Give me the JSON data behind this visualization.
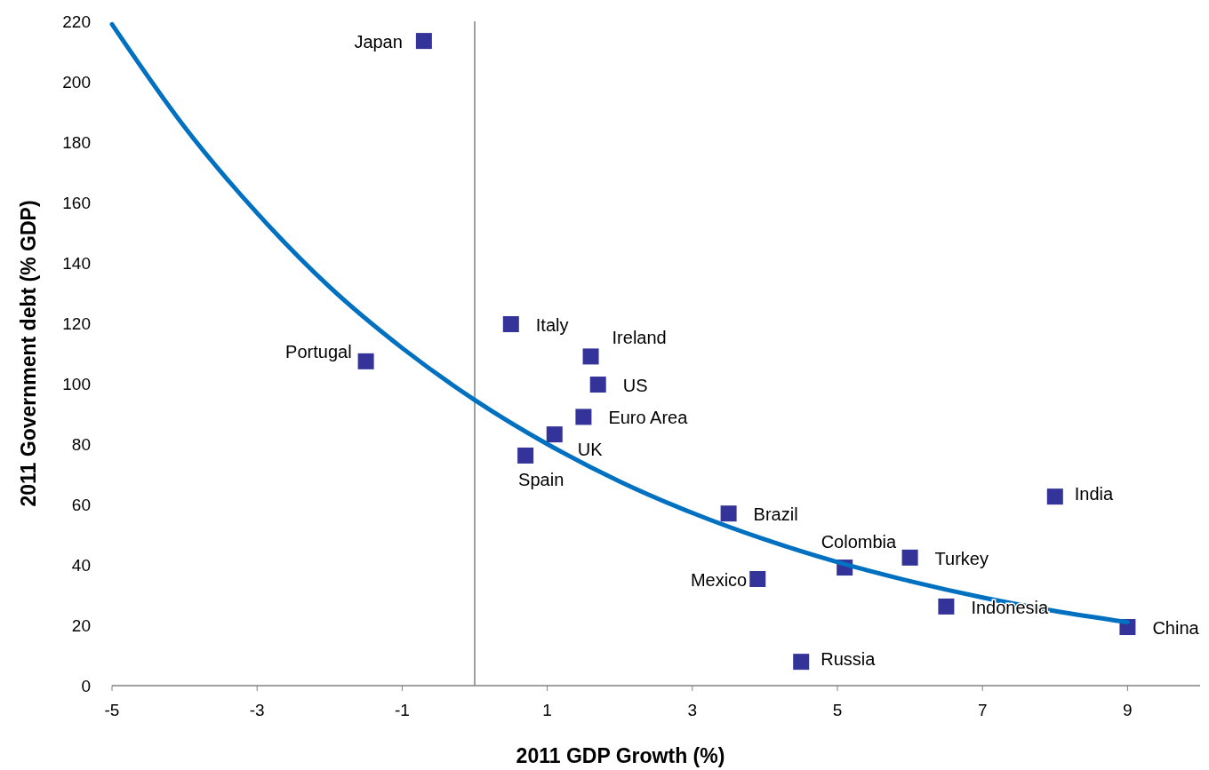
{
  "chart_data": {
    "type": "scatter",
    "xlabel": "2011 GDP Growth (%)",
    "ylabel": "2011  Government debt (% GDP)",
    "xlim": [
      -5,
      10
    ],
    "xticks": [
      -5,
      -3,
      -1,
      1,
      3,
      5,
      7,
      9
    ],
    "ylim": [
      0,
      220
    ],
    "yticks": [
      0,
      20,
      40,
      60,
      80,
      100,
      120,
      140,
      160,
      180,
      200,
      220
    ],
    "grid": false,
    "marker": "square",
    "ref_lines": [
      {
        "axis": "x",
        "value": 0,
        "color": "#808080"
      }
    ],
    "series": [
      {
        "color": "#333399",
        "x": [
          -0.7,
          -1.5,
          0.5,
          1.6,
          1.7,
          1.5,
          1.1,
          0.7,
          3.5,
          3.9,
          5.1,
          4.5,
          6.0,
          6.5,
          8.0,
          9.0
        ],
        "values": [
          213.5,
          107.4,
          119.7,
          109,
          99.7,
          89,
          83.2,
          76.2,
          57,
          35.3,
          39.1,
          7.9,
          42.4,
          26.2,
          62.6,
          19.4
        ]
      },
      {
        "type": "line",
        "color": "#0070c0",
        "line_style": "solid",
        "marker": "none",
        "x": [
          -5,
          -4,
          -3,
          -2,
          -1,
          0,
          1,
          2,
          3,
          4,
          5,
          6,
          7,
          8,
          9
        ],
        "values": [
          219,
          185,
          156.5,
          132,
          111.8,
          94.6,
          80,
          67.6,
          57.2,
          48.4,
          40.9,
          34.6,
          29.2,
          24.7,
          21
        ]
      }
    ],
    "annotations": [
      {
        "text": "Japan",
        "x": -0.7,
        "y": 213.5
      },
      {
        "text": "Portugal",
        "x": -1.5,
        "y": 107.4
      },
      {
        "text": "Italy",
        "x": 0.5,
        "y": 119.7
      },
      {
        "text": "Ireland",
        "x": 1.6,
        "y": 109
      },
      {
        "text": "US",
        "x": 1.7,
        "y": 99.7
      },
      {
        "text": "Euro Area",
        "x": 1.5,
        "y": 89
      },
      {
        "text": "UK",
        "x": 1.1,
        "y": 83.2
      },
      {
        "text": "Spain",
        "x": 0.7,
        "y": 76.2
      },
      {
        "text": "Brazil",
        "x": 3.5,
        "y": 57
      },
      {
        "text": "Mexico",
        "x": 3.9,
        "y": 35.3
      },
      {
        "text": "Colombia",
        "x": 5.1,
        "y": 39.1
      },
      {
        "text": "Russia",
        "x": 4.5,
        "y": 7.9
      },
      {
        "text": "Turkey",
        "x": 6.0,
        "y": 42.4
      },
      {
        "text": "Indonesia",
        "x": 6.5,
        "y": 26.2
      },
      {
        "text": "India",
        "x": 8.0,
        "y": 62.6
      },
      {
        "text": "China",
        "x": 9.0,
        "y": 19.4
      }
    ]
  }
}
